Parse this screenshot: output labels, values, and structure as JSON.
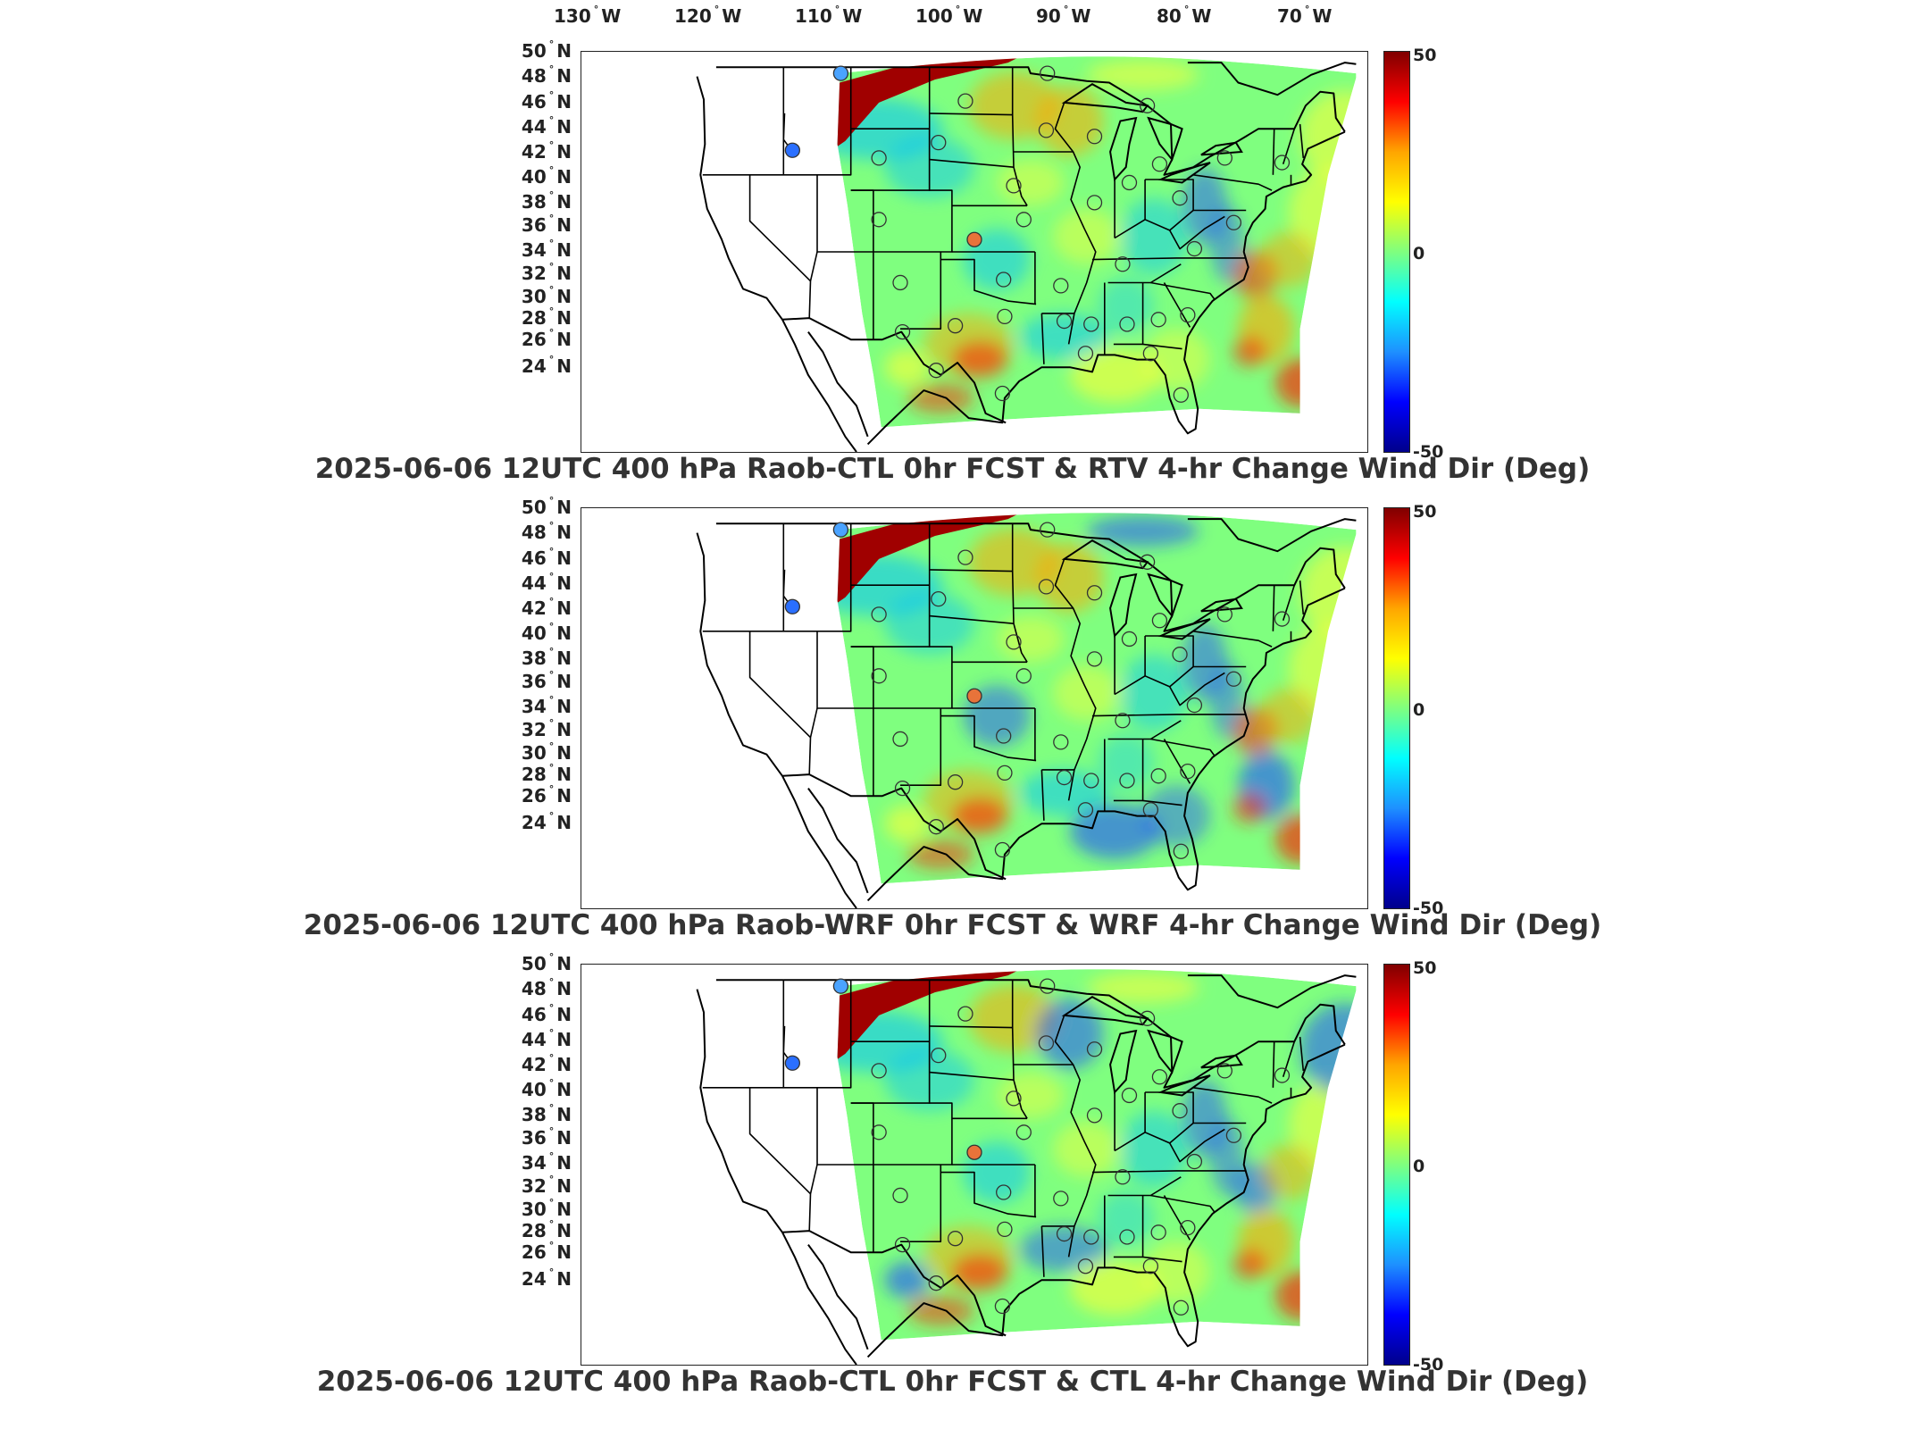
{
  "longitude_labels": [
    {
      "deg": "130",
      "dir": "W"
    },
    {
      "deg": "120",
      "dir": "W"
    },
    {
      "deg": "110",
      "dir": "W"
    },
    {
      "deg": "100",
      "dir": "W"
    },
    {
      "deg": "90",
      "dir": "W"
    },
    {
      "deg": "80",
      "dir": "W"
    },
    {
      "deg": "70",
      "dir": "W"
    }
  ],
  "latitude_labels": [
    {
      "deg": "50",
      "dir": "N"
    },
    {
      "deg": "48",
      "dir": "N"
    },
    {
      "deg": "46",
      "dir": "N"
    },
    {
      "deg": "44",
      "dir": "N"
    },
    {
      "deg": "42",
      "dir": "N"
    },
    {
      "deg": "40",
      "dir": "N"
    },
    {
      "deg": "38",
      "dir": "N"
    },
    {
      "deg": "36",
      "dir": "N"
    },
    {
      "deg": "34",
      "dir": "N"
    },
    {
      "deg": "32",
      "dir": "N"
    },
    {
      "deg": "30",
      "dir": "N"
    },
    {
      "deg": "28",
      "dir": "N"
    },
    {
      "deg": "26",
      "dir": "N"
    },
    {
      "deg": "24",
      "dir": "N"
    }
  ],
  "colorbar": {
    "max": "50",
    "mid": "0",
    "min": "-50",
    "colors": [
      "#800000",
      "#ff0000",
      "#ffa500",
      "#ffff00",
      "#7fff7f",
      "#00ffff",
      "#1e90ff",
      "#0000ff",
      "#00008b"
    ]
  },
  "panels": [
    {
      "title": "2025-06-06 12UTC 400 hPa Raob-CTL 0hr FCST & RTV 4-hr Change Wind Dir (Deg)"
    },
    {
      "title": "2025-06-06 12UTC 400 hPa Raob-WRF 0hr FCST & WRF 4-hr Change Wind Dir (Deg)"
    },
    {
      "title": "2025-06-06 12UTC 400 hPa Raob-CTL 0hr FCST & CTL 4-hr Change Wind Dir (Deg)"
    }
  ],
  "map_colors": {
    "background": "#7fff7f",
    "band": "#a00000",
    "warm": "#ffa500",
    "hot": "#ff2000",
    "cool": "#00bfff",
    "cold": "#1e50ff",
    "yellow": "#ffff33",
    "station_edge": "#333333"
  },
  "stations": [
    {
      "lon": -111.9,
      "lat": 48.6,
      "fill": "#4aa3ff"
    },
    {
      "lon": -116.2,
      "lat": 43.6,
      "fill": "#2a6fff"
    },
    {
      "lon": -108.5,
      "lat": 43.1,
      "fill": "none"
    },
    {
      "lon": -103.2,
      "lat": 44.1,
      "fill": "none"
    },
    {
      "lon": -100.8,
      "lat": 46.8,
      "fill": "none"
    },
    {
      "lon": -93.5,
      "lat": 48.6,
      "fill": "none"
    },
    {
      "lon": -93.6,
      "lat": 44.9,
      "fill": "none"
    },
    {
      "lon": -89.3,
      "lat": 44.5,
      "fill": "none"
    },
    {
      "lon": -84.6,
      "lat": 46.5,
      "fill": "none"
    },
    {
      "lon": -83.5,
      "lat": 42.7,
      "fill": "none"
    },
    {
      "lon": -77.7,
      "lat": 43.1,
      "fill": "none"
    },
    {
      "lon": -72.6,
      "lat": 42.8,
      "fill": "none"
    },
    {
      "lon": -89.3,
      "lat": 40.2,
      "fill": "none"
    },
    {
      "lon": -86.2,
      "lat": 41.5,
      "fill": "none"
    },
    {
      "lon": -81.7,
      "lat": 40.5,
      "fill": "none"
    },
    {
      "lon": -96.5,
      "lat": 41.3,
      "fill": "none"
    },
    {
      "lon": -108.5,
      "lat": 39.1,
      "fill": "none"
    },
    {
      "lon": -100.0,
      "lat": 37.8,
      "fill": "#e8733a"
    },
    {
      "lon": -95.6,
      "lat": 39.1,
      "fill": "none"
    },
    {
      "lon": -106.6,
      "lat": 35.0,
      "fill": "none"
    },
    {
      "lon": -97.4,
      "lat": 35.2,
      "fill": "none"
    },
    {
      "lon": -92.3,
      "lat": 34.8,
      "fill": "none"
    },
    {
      "lon": -86.8,
      "lat": 36.2,
      "fill": "none"
    },
    {
      "lon": -80.4,
      "lat": 37.2,
      "fill": "none"
    },
    {
      "lon": -76.9,
      "lat": 38.9,
      "fill": "none"
    },
    {
      "lon": -106.4,
      "lat": 31.8,
      "fill": "none"
    },
    {
      "lon": -101.7,
      "lat": 32.2,
      "fill": "none"
    },
    {
      "lon": -97.3,
      "lat": 32.8,
      "fill": "none"
    },
    {
      "lon": -92.0,
      "lat": 32.5,
      "fill": "none"
    },
    {
      "lon": -89.6,
      "lat": 32.3,
      "fill": "none"
    },
    {
      "lon": -86.4,
      "lat": 32.3,
      "fill": "none"
    },
    {
      "lon": -83.6,
      "lat": 32.6,
      "fill": "none"
    },
    {
      "lon": -81.0,
      "lat": 32.9,
      "fill": "none"
    },
    {
      "lon": -84.3,
      "lat": 30.4,
      "fill": "none"
    },
    {
      "lon": -90.1,
      "lat": 30.4,
      "fill": "none"
    },
    {
      "lon": -97.5,
      "lat": 27.8,
      "fill": "none"
    },
    {
      "lon": -81.6,
      "lat": 27.7,
      "fill": "none"
    },
    {
      "lon": -103.4,
      "lat": 29.3,
      "fill": "none"
    }
  ]
}
